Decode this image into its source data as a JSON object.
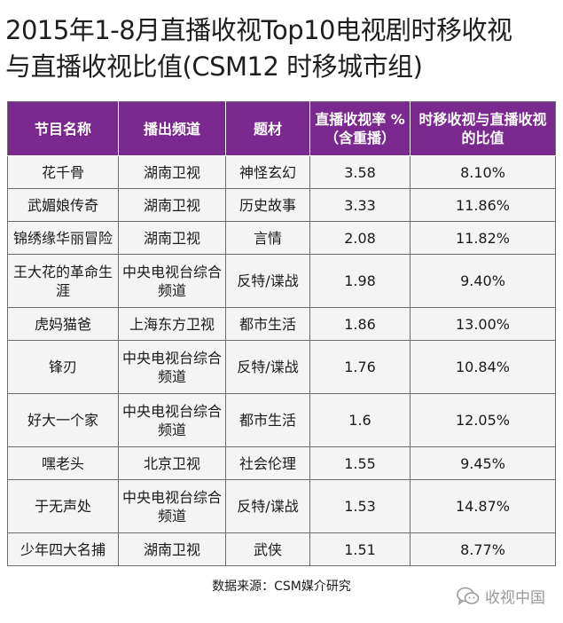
{
  "title_lines": [
    "2015年1-8月直播收视Top10电视剧时移收视",
    "与直播收视比值(CSM12 时移城市组)"
  ],
  "source_text": "数据来源：CSM媒介研究",
  "watermark_text": "收视中国",
  "chart_data": {
    "type": "table",
    "columns": [
      "节目名称",
      "播出频道",
      "题材",
      "直播收视率 %（含重播）",
      "时移收视与直播收视的比值"
    ],
    "rows": [
      [
        "花千骨",
        "湖南卫视",
        "神怪玄幻",
        "3.58",
        "8.10%"
      ],
      [
        "武媚娘传奇",
        "湖南卫视",
        "历史故事",
        "3.33",
        "11.86%"
      ],
      [
        "锦绣缘华丽冒险",
        "湖南卫视",
        "言情",
        "2.08",
        "11.82%"
      ],
      [
        "王大花的革命生涯",
        "中央电视台综合频道",
        "反特/谍战",
        "1.98",
        "9.40%"
      ],
      [
        "虎妈猫爸",
        "上海东方卫视",
        "都市生活",
        "1.86",
        "13.00%"
      ],
      [
        "锋刃",
        "中央电视台综合频道",
        "反特/谍战",
        "1.76",
        "10.84%"
      ],
      [
        "好大一个家",
        "中央电视台综合频道",
        "都市生活",
        "1.6",
        "12.05%"
      ],
      [
        "嘿老头",
        "北京卫视",
        "社会伦理",
        "1.55",
        "9.45%"
      ],
      [
        "于无声处",
        "中央电视台综合频道",
        "反特/谍战",
        "1.53",
        "14.87%"
      ],
      [
        "少年四大名捕",
        "湖南卫视",
        "武侠",
        "1.51",
        "8.77%"
      ]
    ]
  },
  "colors": {
    "header_bg": "#7a2a8e",
    "header_text": "#ffffff",
    "row_bg": "#f4f4f4",
    "border": "#6e6e6e"
  }
}
